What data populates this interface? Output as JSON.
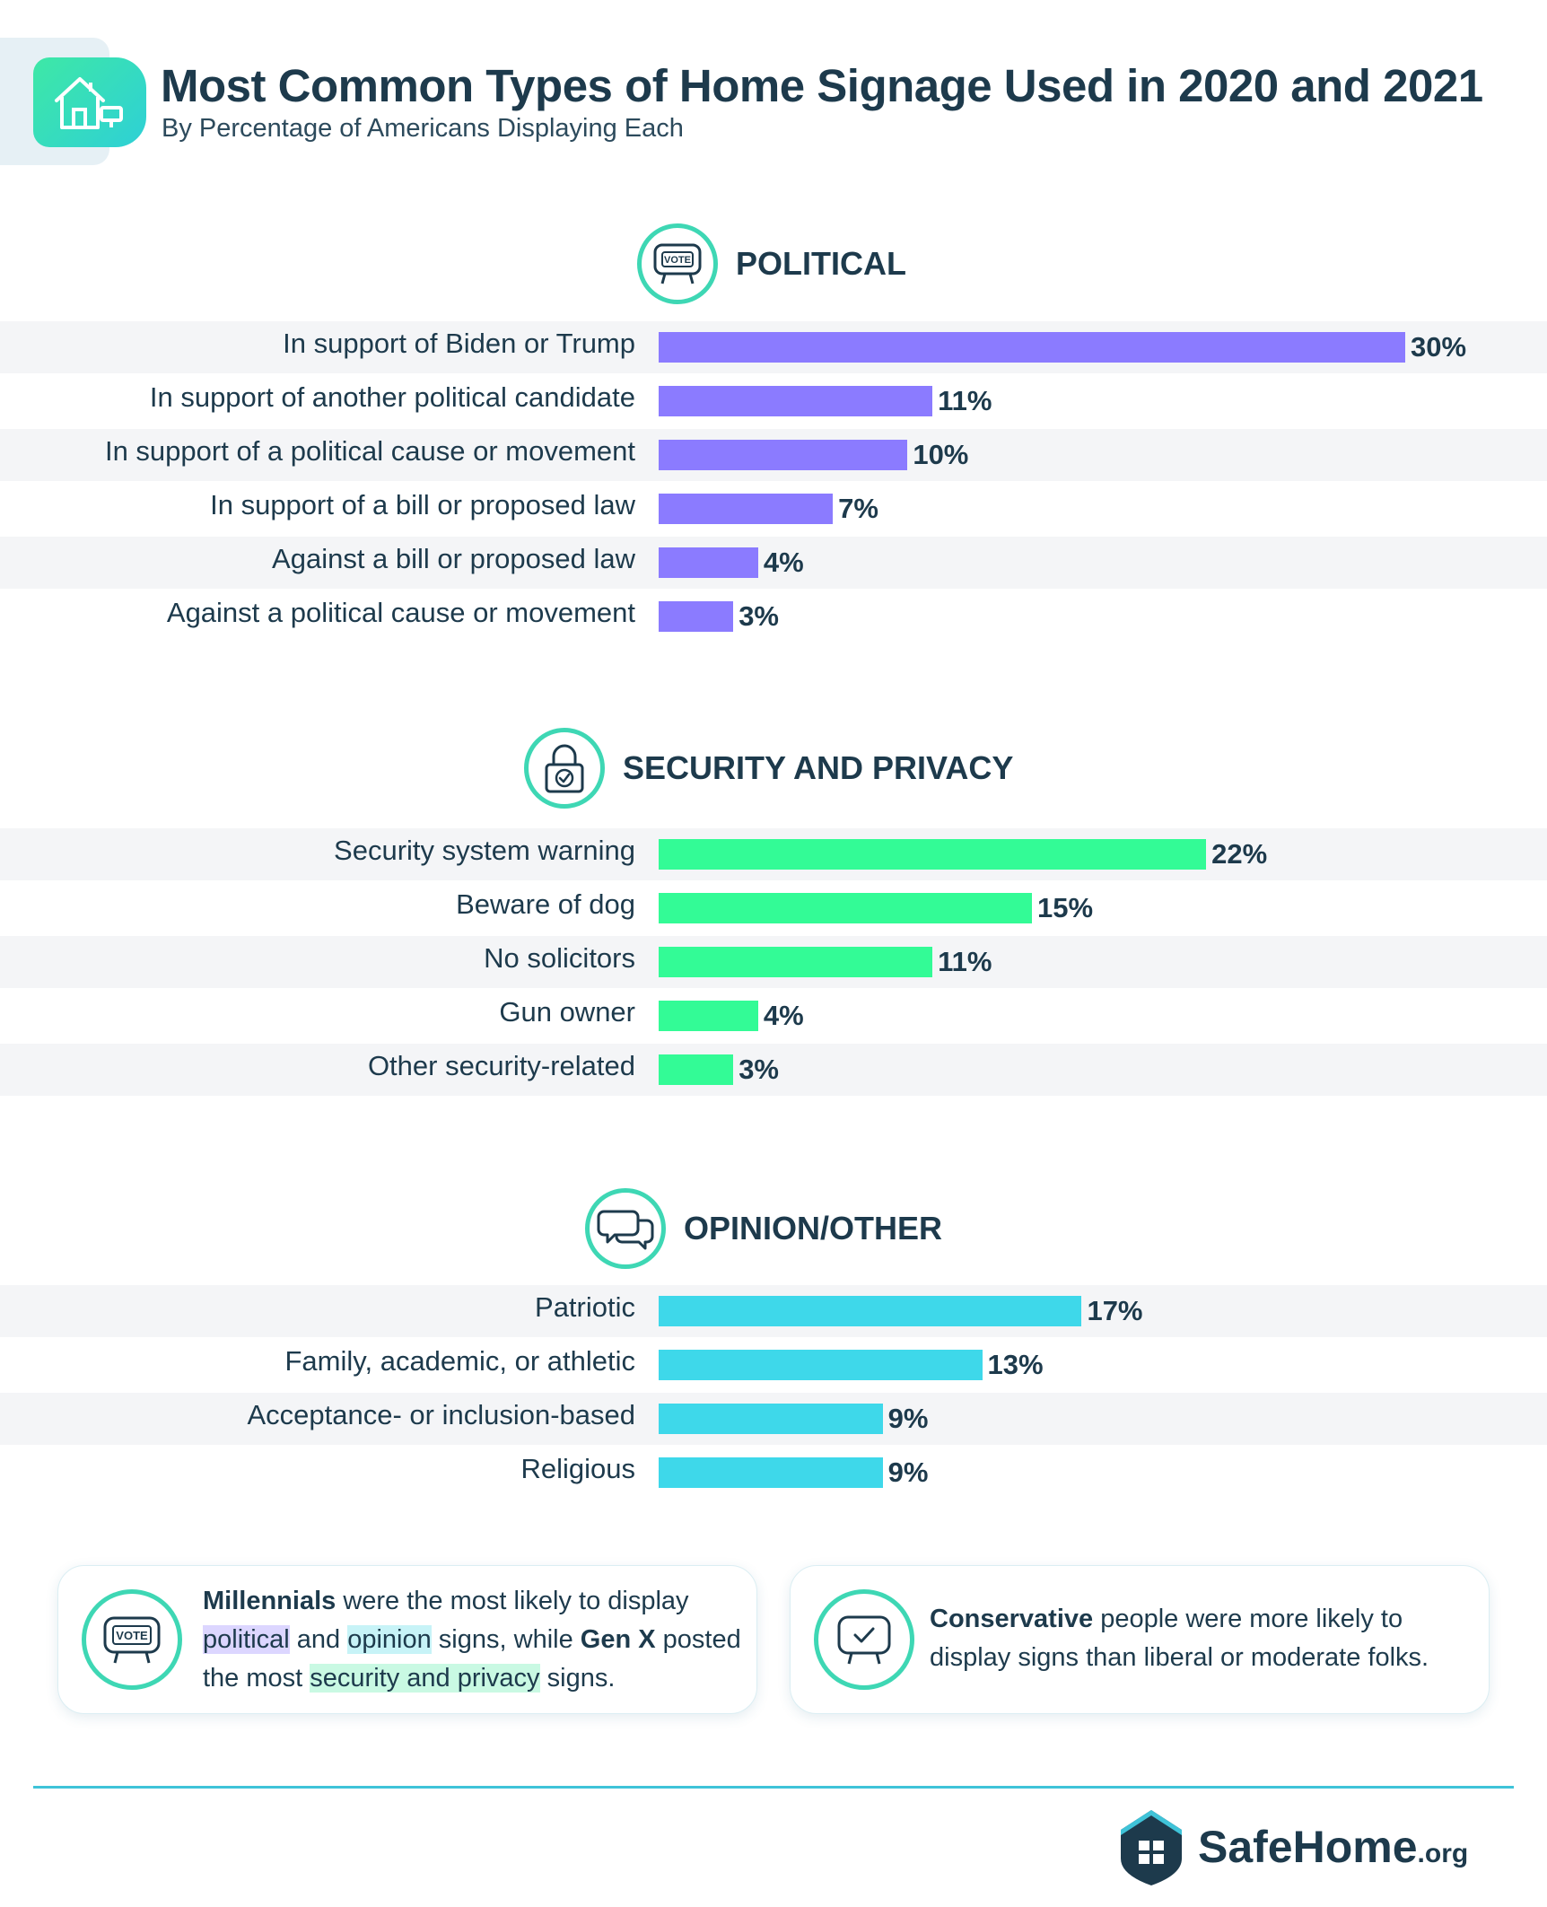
{
  "header": {
    "title": "Most Common Types of Home Signage Used in 2020 and 2021",
    "subtitle": "By Percentage of Americans Displaying Each",
    "icon": "house-icon"
  },
  "colors": {
    "political": "#8b7bff",
    "security": "#33fb96",
    "opinion": "#3ed8ea",
    "accent": "#3ed7b4",
    "text": "#1d3a4c"
  },
  "chart_data": [
    {
      "type": "bar",
      "orientation": "horizontal",
      "title": "POLITICAL",
      "categories": [
        "In support of Biden or Trump",
        "In support of another political candidate",
        "In support of a political cause or movement",
        "In support of a bill or proposed law",
        "Against a bill or proposed law",
        "Against a political cause or movement"
      ],
      "values": [
        30,
        11,
        10,
        7,
        4,
        3
      ],
      "value_labels": [
        "30%",
        "11%",
        "10%",
        "7%",
        "4%",
        "3%"
      ],
      "unit": "%",
      "color": "#8b7bff"
    },
    {
      "type": "bar",
      "orientation": "horizontal",
      "title": "SECURITY AND PRIVACY",
      "categories": [
        "Security system warning",
        "Beware of dog",
        "No solicitors",
        "Gun owner",
        "Other security-related"
      ],
      "values": [
        22,
        15,
        11,
        4,
        3
      ],
      "value_labels": [
        "22%",
        "15%",
        "11%",
        "4%",
        "3%"
      ],
      "unit": "%",
      "color": "#33fb96"
    },
    {
      "type": "bar",
      "orientation": "horizontal",
      "title": "OPINION/OTHER",
      "categories": [
        "Patriotic",
        "Family, academic, or athletic",
        "Acceptance- or inclusion-based",
        "Religious"
      ],
      "values": [
        17,
        13,
        9,
        9
      ],
      "value_labels": [
        "17%",
        "13%",
        "9%",
        "9%"
      ],
      "unit": "%",
      "color": "#3ed8ea"
    }
  ],
  "notes": {
    "left": {
      "p1": "Millennials",
      "p2": " were the most likely to display ",
      "p3": "political",
      "p4": " and ",
      "p5": "opinion",
      "p6": " signs, while ",
      "p7": "Gen X",
      "p8": " posted the most ",
      "p9": "security and privacy",
      "p10": " signs."
    },
    "right": {
      "p1": "Conservative",
      "p2": " people were more likely to display signs than liberal or moderate folks."
    }
  },
  "footer": {
    "brand_name": "SafeHome",
    "brand_tld": ".org"
  }
}
